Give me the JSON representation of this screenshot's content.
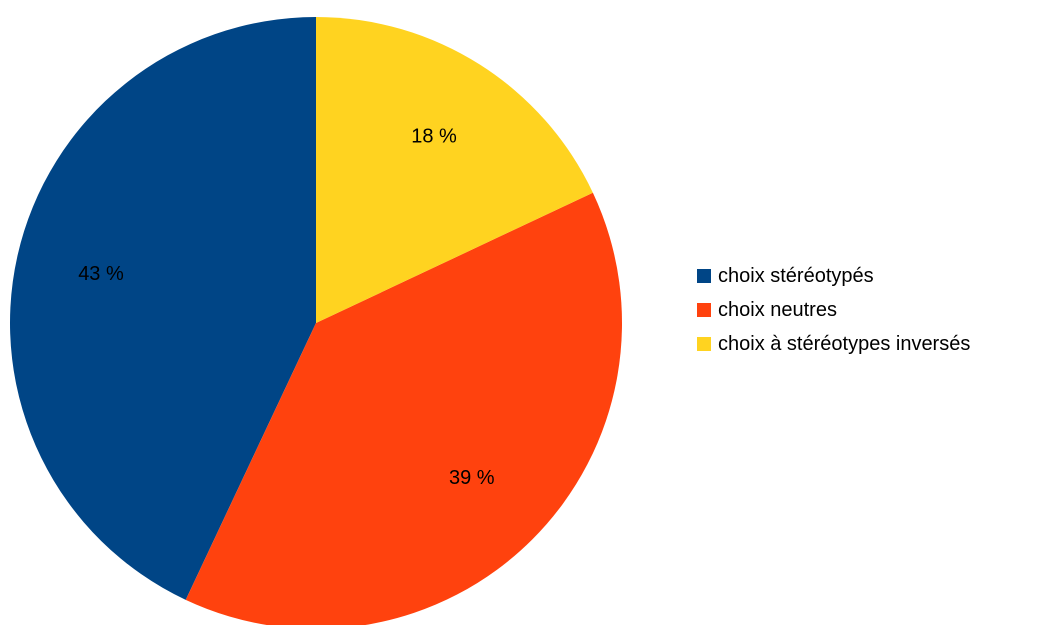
{
  "chart_data": {
    "type": "pie",
    "categories": [
      "choix stéréotypés",
      "choix neutres",
      "choix à stéréotypes inversés"
    ],
    "values": [
      43,
      39,
      18
    ],
    "value_labels": [
      "43 %",
      "39 %",
      "18 %"
    ],
    "colors": [
      "#004586",
      "#ff420e",
      "#ffd320"
    ],
    "title": "",
    "legend_position": "right",
    "start_angle_deg": 0,
    "direction": "counterclockwise"
  }
}
